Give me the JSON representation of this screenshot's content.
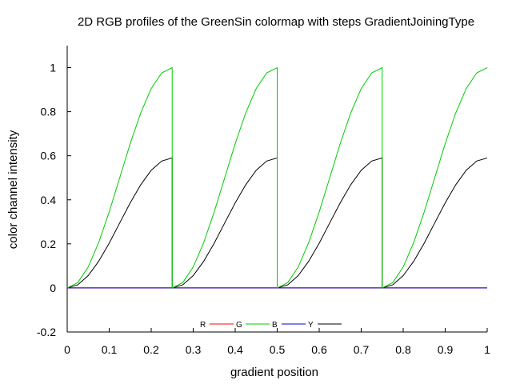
{
  "chart_data": {
    "type": "line",
    "title": "2D RGB profiles of the GreenSin colormap with steps GradientJoiningType",
    "xlabel": "gradient position",
    "ylabel": "color channel intensity",
    "xlim": [
      0,
      1
    ],
    "ylim": [
      -0.2,
      1.1
    ],
    "xticks": [
      0,
      0.1,
      0.2,
      0.3,
      0.4,
      0.5,
      0.6,
      0.7,
      0.8,
      0.9,
      1
    ],
    "xtick_labels": [
      "0",
      "0.1",
      "0.2",
      "0.3",
      "0.4",
      "0.5",
      "0.6",
      "0.7",
      "0.8",
      "0.9",
      "1"
    ],
    "yticks": [
      -0.2,
      0,
      0.2,
      0.4,
      0.6,
      0.8,
      1
    ],
    "ytick_labels": [
      "-0.2",
      "0",
      "0.2",
      "0.4",
      "0.6",
      "0.8",
      "1"
    ],
    "grid": false,
    "legend_position": "bottom-center",
    "steps": 4,
    "x": [
      0,
      0.025,
      0.05,
      0.075,
      0.1,
      0.125,
      0.15,
      0.175,
      0.2,
      0.225,
      0.25,
      0.275,
      0.3,
      0.325,
      0.35,
      0.375,
      0.4,
      0.425,
      0.45,
      0.475,
      0.5,
      0.525,
      0.55,
      0.575,
      0.6,
      0.625,
      0.65,
      0.675,
      0.7,
      0.725,
      0.75,
      0.775,
      0.8,
      0.825,
      0.85,
      0.875,
      0.9,
      0.925,
      0.95,
      0.975,
      1
    ],
    "series": [
      {
        "name": "R",
        "color": "#ff0000",
        "values": [
          0,
          0,
          0,
          0,
          0,
          0,
          0,
          0,
          0,
          0,
          0,
          0,
          0,
          0,
          0,
          0,
          0,
          0,
          0,
          0,
          0,
          0,
          0,
          0,
          0,
          0,
          0,
          0,
          0,
          0,
          0,
          0,
          0,
          0,
          0,
          0,
          0,
          0,
          0,
          0,
          0
        ]
      },
      {
        "name": "G",
        "color": "#00cc00",
        "values": [
          0,
          0.024,
          0.095,
          0.206,
          0.345,
          0.5,
          0.655,
          0.794,
          0.905,
          0.976,
          1,
          0.024,
          0.095,
          0.206,
          0.345,
          0.5,
          0.655,
          0.794,
          0.905,
          0.976,
          1,
          0.024,
          0.095,
          0.206,
          0.345,
          0.5,
          0.655,
          0.794,
          0.905,
          0.976,
          1,
          0.024,
          0.095,
          0.206,
          0.345,
          0.5,
          0.655,
          0.794,
          0.905,
          0.976,
          1
        ]
      },
      {
        "name": "B",
        "color": "#0000cc",
        "values": [
          0,
          0,
          0,
          0,
          0,
          0,
          0,
          0,
          0,
          0,
          0,
          0,
          0,
          0,
          0,
          0,
          0,
          0,
          0,
          0,
          0,
          0,
          0,
          0,
          0,
          0,
          0,
          0,
          0,
          0,
          0,
          0,
          0,
          0,
          0,
          0,
          0,
          0,
          0,
          0,
          0
        ]
      },
      {
        "name": "Y",
        "color": "#000000",
        "values": [
          0,
          0.014,
          0.056,
          0.121,
          0.203,
          0.295,
          0.386,
          0.468,
          0.534,
          0.576,
          0.59,
          0.014,
          0.056,
          0.121,
          0.203,
          0.295,
          0.386,
          0.468,
          0.534,
          0.576,
          0.59,
          0.014,
          0.056,
          0.121,
          0.203,
          0.295,
          0.386,
          0.468,
          0.534,
          0.576,
          0.59,
          0.014,
          0.056,
          0.121,
          0.203,
          0.295,
          0.386,
          0.468,
          0.534,
          0.576,
          0.59
        ]
      }
    ]
  }
}
